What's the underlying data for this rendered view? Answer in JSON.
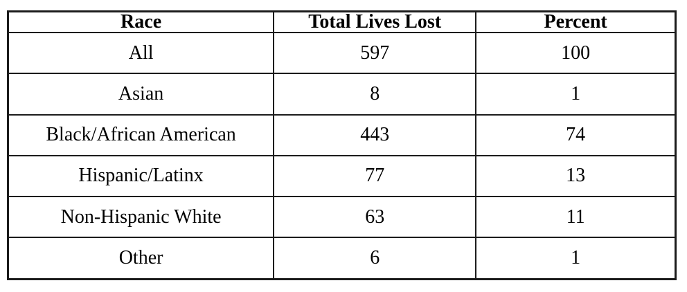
{
  "chart_data": {
    "type": "table",
    "title": "",
    "columns": [
      "Race",
      "Total Lives Lost",
      "Percent"
    ],
    "rows": [
      [
        "All",
        "597",
        "100"
      ],
      [
        "Asian",
        "8",
        "1"
      ],
      [
        "Black/African American",
        "443",
        "74"
      ],
      [
        "Hispanic/Latinx",
        "77",
        "13"
      ],
      [
        "Non-Hispanic White",
        "63",
        "11"
      ],
      [
        "Other",
        "6",
        "1"
      ]
    ],
    "notes": {
      "border_color": "#1b1b1b",
      "background_color": "#ffffff",
      "text_color": "#000000",
      "header_bold": true
    }
  }
}
